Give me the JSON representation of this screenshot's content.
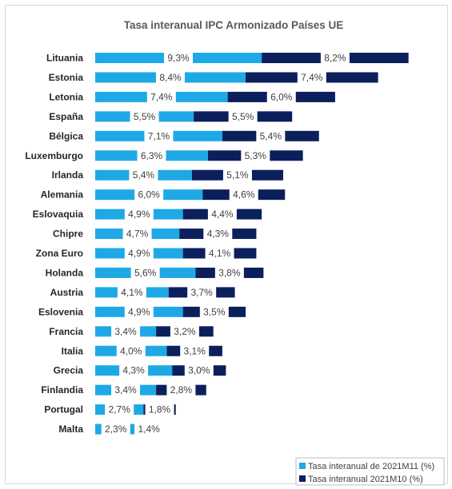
{
  "chart_data": {
    "type": "bar",
    "orientation": "horizontal",
    "stacked": true,
    "title": "Tasa interanual IPC Armonizado Países UE",
    "categories": [
      "Lituania",
      "Estonia",
      "Letonia",
      "España",
      "Bélgica",
      "Luxemburgo",
      "Irlanda",
      "Alemania",
      "Eslovaquia",
      "Chipre",
      "Zona Euro",
      "Holanda",
      "Austria",
      "Eslovenia",
      "Francia",
      "Italia",
      "Grecia",
      "Finlandia",
      "Portugal",
      "Malta"
    ],
    "series": [
      {
        "name": "Tasa interanual de 2021M11 (%)",
        "color": "#1ea9e6",
        "values": [
          9.3,
          8.4,
          7.4,
          5.5,
          7.1,
          6.3,
          5.4,
          6.0,
          4.9,
          4.7,
          4.9,
          5.6,
          4.1,
          4.9,
          3.4,
          4.0,
          4.3,
          3.4,
          2.7,
          2.3
        ],
        "labels": [
          "9,3%",
          "8,4%",
          "7,4%",
          "5,5%",
          "7,1%",
          "6,3%",
          "5,4%",
          "6,0%",
          "4,9%",
          "4,7%",
          "4,9%",
          "5,6%",
          "4,1%",
          "4,9%",
          "3,4%",
          "4,0%",
          "4,3%",
          "3,4%",
          "2,7%",
          "2,3%"
        ]
      },
      {
        "name": "Tasa interanual 2021M10 (%)",
        "color": "#0b1f5c",
        "values": [
          8.2,
          7.4,
          6.0,
          5.5,
          5.4,
          5.3,
          5.1,
          4.6,
          4.4,
          4.3,
          4.1,
          3.8,
          3.7,
          3.5,
          3.2,
          3.1,
          3.0,
          2.8,
          1.8,
          1.4
        ],
        "labels": [
          "8,2%",
          "7,4%",
          "6,0%",
          "5,5%",
          "5,4%",
          "5,3%",
          "5,1%",
          "4,6%",
          "4,4%",
          "4,3%",
          "4,1%",
          "3,8%",
          "3,7%",
          "3,5%",
          "3,2%",
          "3,1%",
          "3,0%",
          "2,8%",
          "1,8%",
          "1,4%"
        ]
      }
    ],
    "xlim": [
      0,
      18
    ],
    "grid": false,
    "legend_position": "bottom-right"
  }
}
